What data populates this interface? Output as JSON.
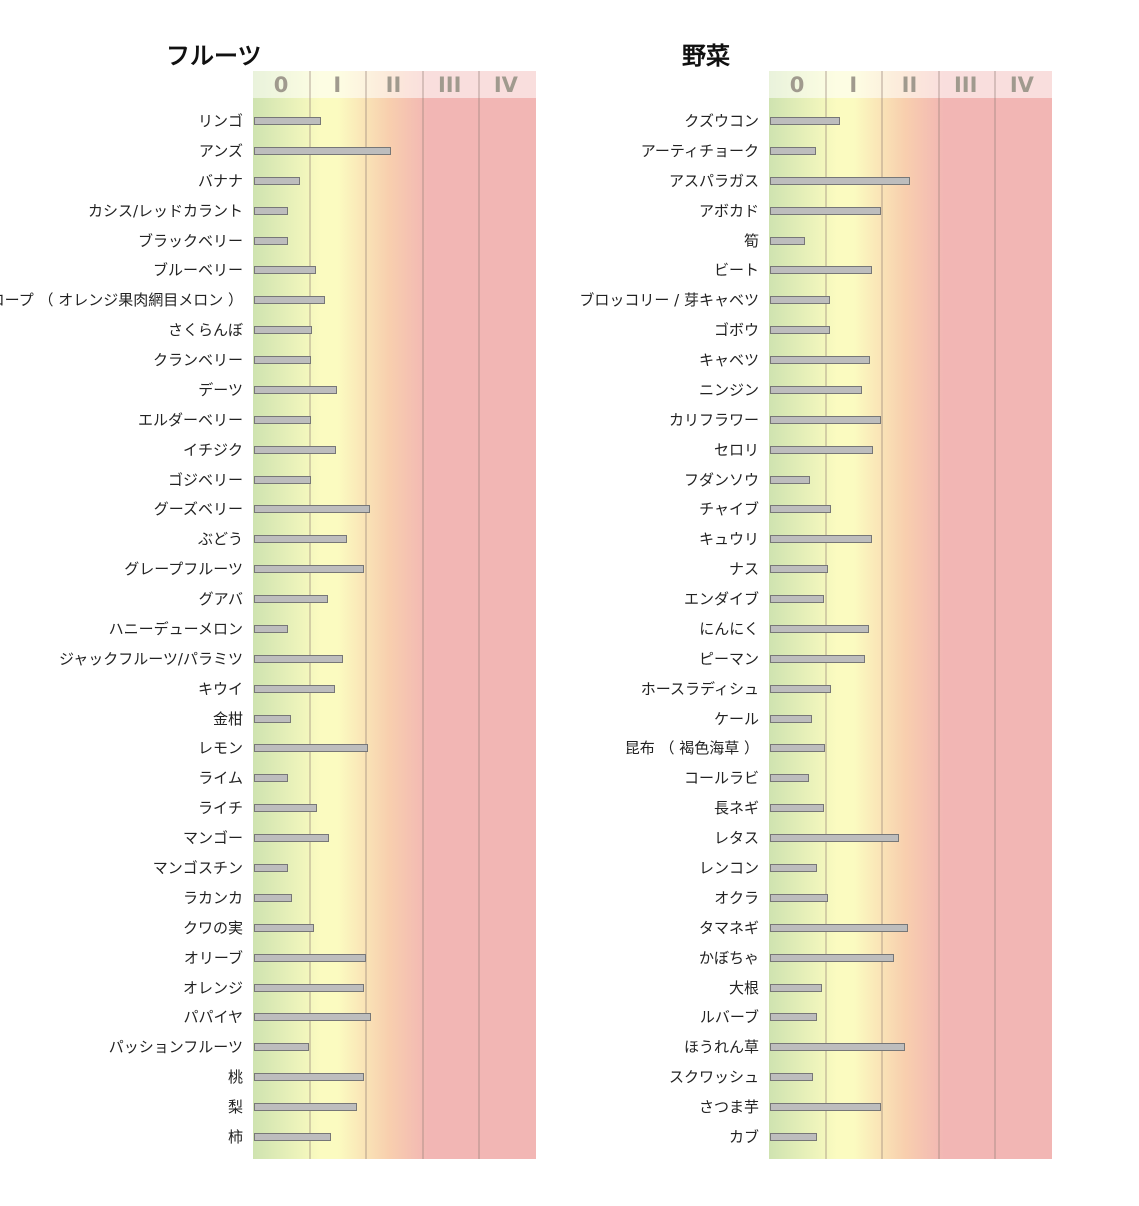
{
  "colors": {
    "zone_green": "#cfe3b0",
    "zone_yellow": "#fbfbc0",
    "zone_orange": "#f8cfae",
    "zone_red": "#f2b6b4",
    "bar_fill": "#bdbdbd",
    "bar_border": "#777777",
    "tick_label": "#a09a8e"
  },
  "chart_data": [
    {
      "type": "bar",
      "orientation": "horizontal",
      "title": "フルーツ",
      "xlim": [
        -0.1,
        4.5
      ],
      "grid": true,
      "tick_labels": [
        "0",
        "I",
        "II",
        "III",
        "IV"
      ],
      "categories": [
        "リンゴ",
        "アンズ",
        "バナナ",
        "カシス/レッドカラント",
        "ブラックベリー",
        "ブルーベリー",
        "カンタロープ （ オレンジ果肉網目メロン ）",
        "さくらんぼ",
        "クランベリー",
        "デーツ",
        "エルダーベリー",
        "イチジク",
        "ゴジベリー",
        "グーズベリー",
        "ぶどう",
        "グレープフルーツ",
        "グアバ",
        "ハニーデューメロン",
        "ジャックフルーツ/パラミツ",
        "キウイ",
        "金柑",
        "レモン",
        "ライム",
        "ライチ",
        "マンゴー",
        "マンゴスチン",
        "ラカンカ",
        "クワの実",
        "オリーブ",
        "オレンジ",
        "パパイヤ",
        "パッションフルーツ",
        "桃",
        "梨",
        "柿"
      ],
      "values": [
        0.72,
        1.96,
        0.34,
        0.12,
        0.12,
        0.62,
        0.79,
        0.56,
        0.54,
        1.0,
        0.53,
        0.98,
        0.54,
        1.59,
        1.17,
        1.48,
        0.84,
        0.13,
        1.11,
        0.96,
        0.17,
        1.54,
        0.12,
        0.64,
        0.86,
        0.12,
        0.19,
        0.58,
        1.52,
        1.48,
        1.61,
        0.49,
        1.47,
        1.35,
        0.89
      ]
    },
    {
      "type": "bar",
      "orientation": "horizontal",
      "title": "野菜",
      "xlim": [
        -0.1,
        4.5
      ],
      "grid": true,
      "tick_labels": [
        "0",
        "I",
        "II",
        "III",
        "IV"
      ],
      "categories": [
        "クズウコン",
        "アーティチョーク",
        "アスパラガス",
        "アボカド",
        "筍",
        "ビート",
        "ブロッコリー / 芽キャベツ",
        "ゴボウ",
        "キャベツ",
        "ニンジン",
        "カリフラワー",
        "セロリ",
        "フダンソウ",
        "チャイブ",
        "キュウリ",
        "ナス",
        "エンダイブ",
        "にんにく",
        "ピーマン",
        "ホースラディシュ",
        "ケール",
        "昆布 （ 褐色海草 ）",
        "コールラビ",
        "長ネギ",
        "レタス",
        "レンコン",
        "オクラ",
        "タマネギ",
        "かぼちゃ",
        "大根",
        "ルバーブ",
        "ほうれん草",
        "スクワッシュ",
        "さつま芋",
        "カブ"
      ],
      "values": [
        0.76,
        0.34,
        2.01,
        1.5,
        0.14,
        1.34,
        0.58,
        0.58,
        1.3,
        1.15,
        1.49,
        1.35,
        0.24,
        0.6,
        1.33,
        0.56,
        0.48,
        1.28,
        1.21,
        0.6,
        0.27,
        0.5,
        0.22,
        0.48,
        1.82,
        0.35,
        0.55,
        1.98,
        1.72,
        0.45,
        0.35,
        1.93,
        0.28,
        1.5,
        0.35
      ]
    }
  ]
}
